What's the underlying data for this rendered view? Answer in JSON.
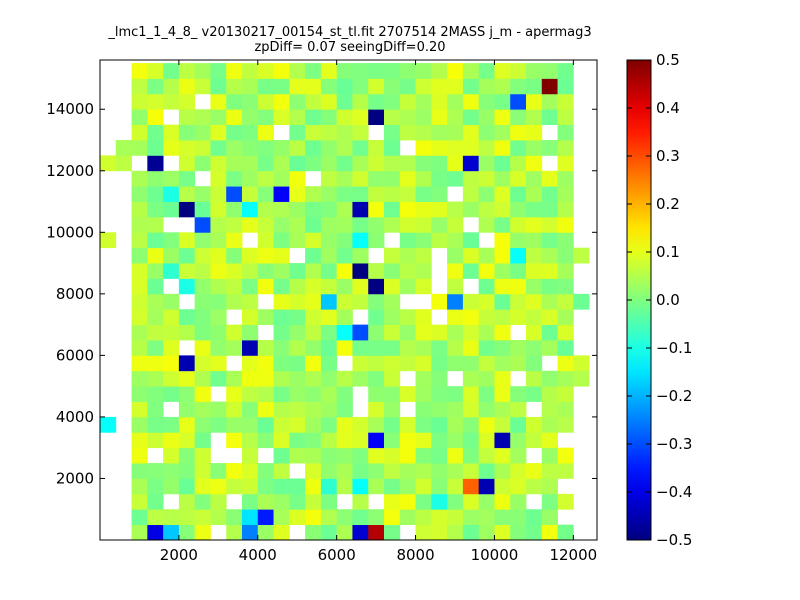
{
  "chart_data": {
    "type": "heatmap",
    "title_line1": "_lmc1_1_4_8_ v20130217_00154_st_tl.fit 2707514 2MASS j_m - apermag3",
    "title_line2": "zpDiff= 0.07 seeingDiff=0.20",
    "xlabel": "",
    "ylabel": "",
    "xlim": [
      0,
      12600
    ],
    "ylim": [
      0,
      15600
    ],
    "x_ticks": [
      2000,
      4000,
      6000,
      8000,
      10000,
      12000
    ],
    "y_ticks": [
      2000,
      4000,
      6000,
      8000,
      10000,
      12000,
      14000
    ],
    "x_tick_labels": [
      "2000",
      "4000",
      "6000",
      "8000",
      "10000",
      "12000"
    ],
    "y_tick_labels": [
      "2000",
      "4000",
      "6000",
      "8000",
      "10000",
      "12000",
      "14000"
    ],
    "colormap": "jet",
    "colorbar": {
      "vmin": -0.5,
      "vmax": 0.5,
      "ticks": [
        -0.5,
        -0.4,
        -0.3,
        -0.2,
        -0.1,
        0.0,
        0.1,
        0.2,
        0.3,
        0.4,
        0.5
      ],
      "tick_labels": [
        "−0.5",
        "−0.4",
        "−0.3",
        "−0.2",
        "−0.1",
        "0.0",
        "0.1",
        "0.2",
        "0.3",
        "0.4",
        "0.5"
      ]
    },
    "cell_width": 400,
    "cell_height": 500,
    "grid": "off",
    "base_value": 0.04,
    "filled_columns": [
      {
        "x0": 0,
        "x1": 400,
        "rows": [
          [
            3500,
            4000,
            -0.12
          ],
          [
            9500,
            10000,
            0.08
          ],
          [
            12000,
            12500,
            0.08
          ]
        ]
      },
      {
        "x0": 400,
        "x1": 800,
        "rows": [
          [
            12000,
            12500,
            0.06
          ],
          [
            12500,
            13000,
            0.04
          ]
        ]
      },
      {
        "x0": 800,
        "x1": 12000,
        "y0": 0,
        "y1": 15500
      },
      {
        "x0": 12000,
        "x1": 12400,
        "rows": [
          [
            7500,
            8000,
            -0.02
          ],
          [
            9000,
            9500,
            0.06
          ],
          [
            5500,
            6000,
            0.08
          ],
          [
            5000,
            5500,
            0.05
          ]
        ]
      }
    ],
    "holes": [
      [
        7500,
        8000,
        [
          1000,
          1500
        ],
        [
          1500,
          2000
        ],
        [
          2000,
          2500
        ]
      ],
      [
        800,
        1200,
        [
          4000,
          4500
        ],
        [
          4500,
          5000
        ],
        [
          5000,
          5500
        ],
        [
          5500,
          6000
        ],
        [
          6000,
          6500
        ],
        [
          6500,
          7000
        ],
        [
          7000,
          7500
        ],
        [
          7500,
          8000
        ],
        [
          8000,
          8500
        ],
        [
          13500,
          14000
        ],
        [
          14000,
          14500
        ],
        [
          14500,
          15000
        ],
        [
          15000,
          15500
        ],
        [
          1000,
          1500
        ],
        [
          1500,
          2000
        ],
        [
          500,
          1000
        ]
      ]
    ],
    "special_cells": [
      {
        "x": 11200,
        "y": 14900,
        "value": 0.5
      },
      {
        "x": 10400,
        "y": 14400,
        "value": -0.3
      },
      {
        "x": 6800,
        "y": 13900,
        "value": -0.5
      },
      {
        "x": 1400,
        "y": 12400,
        "value": -0.48
      },
      {
        "x": 9200,
        "y": 12400,
        "value": -0.42
      },
      {
        "x": 3400,
        "y": 11400,
        "value": -0.3
      },
      {
        "x": 4600,
        "y": 11400,
        "value": -0.38
      },
      {
        "x": 2200,
        "y": 10900,
        "value": -0.5
      },
      {
        "x": 6400,
        "y": 10900,
        "value": -0.45
      },
      {
        "x": 2600,
        "y": 10400,
        "value": -0.3
      },
      {
        "x": 3800,
        "y": 10900,
        "value": -0.12
      },
      {
        "x": 6400,
        "y": 9900,
        "value": -0.12
      },
      {
        "x": 10400,
        "y": 9400,
        "value": -0.12
      },
      {
        "x": 6400,
        "y": 8900,
        "value": -0.5
      },
      {
        "x": 6800,
        "y": 8400,
        "value": -0.5
      },
      {
        "x": 2200,
        "y": 8400,
        "value": -0.1
      },
      {
        "x": 5600,
        "y": 7900,
        "value": -0.18
      },
      {
        "x": 9000,
        "y": 7900,
        "value": -0.25
      },
      {
        "x": 6400,
        "y": 6900,
        "value": -0.3
      },
      {
        "x": 6000,
        "y": 6900,
        "value": -0.12
      },
      {
        "x": 3800,
        "y": 6400,
        "value": -0.45
      },
      {
        "x": 2200,
        "y": 5900,
        "value": -0.45
      },
      {
        "x": 6800,
        "y": 3400,
        "value": -0.38
      },
      {
        "x": 10000,
        "y": 3400,
        "value": -0.45
      },
      {
        "x": 9400,
        "y": 1900,
        "value": 0.28
      },
      {
        "x": 9800,
        "y": 1900,
        "value": -0.45
      },
      {
        "x": 8600,
        "y": 1400,
        "value": -0.1
      },
      {
        "x": 3800,
        "y": 900,
        "value": -0.15
      },
      {
        "x": 4200,
        "y": 900,
        "value": -0.35
      },
      {
        "x": 1400,
        "y": 400,
        "value": -0.4
      },
      {
        "x": 1800,
        "y": 400,
        "value": -0.18
      },
      {
        "x": 3800,
        "y": 400,
        "value": -0.25
      },
      {
        "x": 6400,
        "y": 400,
        "value": -0.42
      },
      {
        "x": 6800,
        "y": 400,
        "value": 0.45
      },
      {
        "x": 6400,
        "y": 1900,
        "value": -0.12
      },
      {
        "x": 5600,
        "y": 1900,
        "value": -0.08
      },
      {
        "x": 1800,
        "y": 8900,
        "value": -0.08
      },
      {
        "x": 1800,
        "y": 11400,
        "value": -0.1
      },
      {
        "x": 2200,
        "y": 900,
        "value": 0.06
      }
    ],
    "white_cells": [
      [
        800,
        12400
      ],
      [
        1600,
        12400
      ],
      [
        1600,
        13900
      ],
      [
        2400,
        14400
      ],
      [
        4400,
        13400
      ],
      [
        5400,
        11900
      ],
      [
        6800,
        13400
      ],
      [
        7600,
        12900
      ],
      [
        8800,
        11400
      ],
      [
        9400,
        10400
      ],
      [
        9800,
        9900
      ],
      [
        6800,
        9400
      ],
      [
        8400,
        9400
      ],
      [
        8400,
        8900
      ],
      [
        8400,
        8400
      ],
      [
        9400,
        8400
      ],
      [
        7600,
        7900
      ],
      [
        8000,
        7900
      ],
      [
        4000,
        7900
      ],
      [
        2000,
        7900
      ],
      [
        4000,
        6900
      ],
      [
        3200,
        7400
      ],
      [
        6400,
        7400
      ],
      [
        8600,
        7400
      ],
      [
        10400,
        6900
      ],
      [
        2000,
        6400
      ],
      [
        3200,
        5900
      ],
      [
        6000,
        5900
      ],
      [
        7600,
        5400
      ],
      [
        8800,
        5400
      ],
      [
        10400,
        5400
      ],
      [
        11200,
        5900
      ],
      [
        2800,
        4900
      ],
      [
        6400,
        4900
      ],
      [
        1600,
        4400
      ],
      [
        7600,
        4400
      ],
      [
        6400,
        4400
      ],
      [
        10800,
        4400
      ],
      [
        1400,
        2900
      ],
      [
        2800,
        2900
      ],
      [
        3200,
        2900
      ],
      [
        4200,
        2900
      ],
      [
        4800,
        2400
      ],
      [
        6000,
        1400
      ],
      [
        6800,
        1400
      ],
      [
        3000,
        400
      ],
      [
        7800,
        400
      ],
      [
        5000,
        400
      ],
      [
        10800,
        2900
      ],
      [
        2600,
        11900
      ],
      [
        11200,
        13400
      ],
      [
        1600,
        10400
      ],
      [
        2000,
        10400
      ],
      [
        3600,
        9900
      ],
      [
        5000,
        9400
      ],
      [
        7200,
        9900
      ],
      [
        11200,
        12400
      ],
      [
        11600,
        3400
      ],
      [
        1600,
        8400
      ],
      [
        3000,
        3400
      ],
      [
        3200,
        1400
      ],
      [
        1800,
        1400
      ],
      [
        10800,
        1400
      ],
      [
        11600,
        1900
      ],
      [
        11600,
        900
      ],
      [
        2200,
        10400
      ]
    ]
  }
}
